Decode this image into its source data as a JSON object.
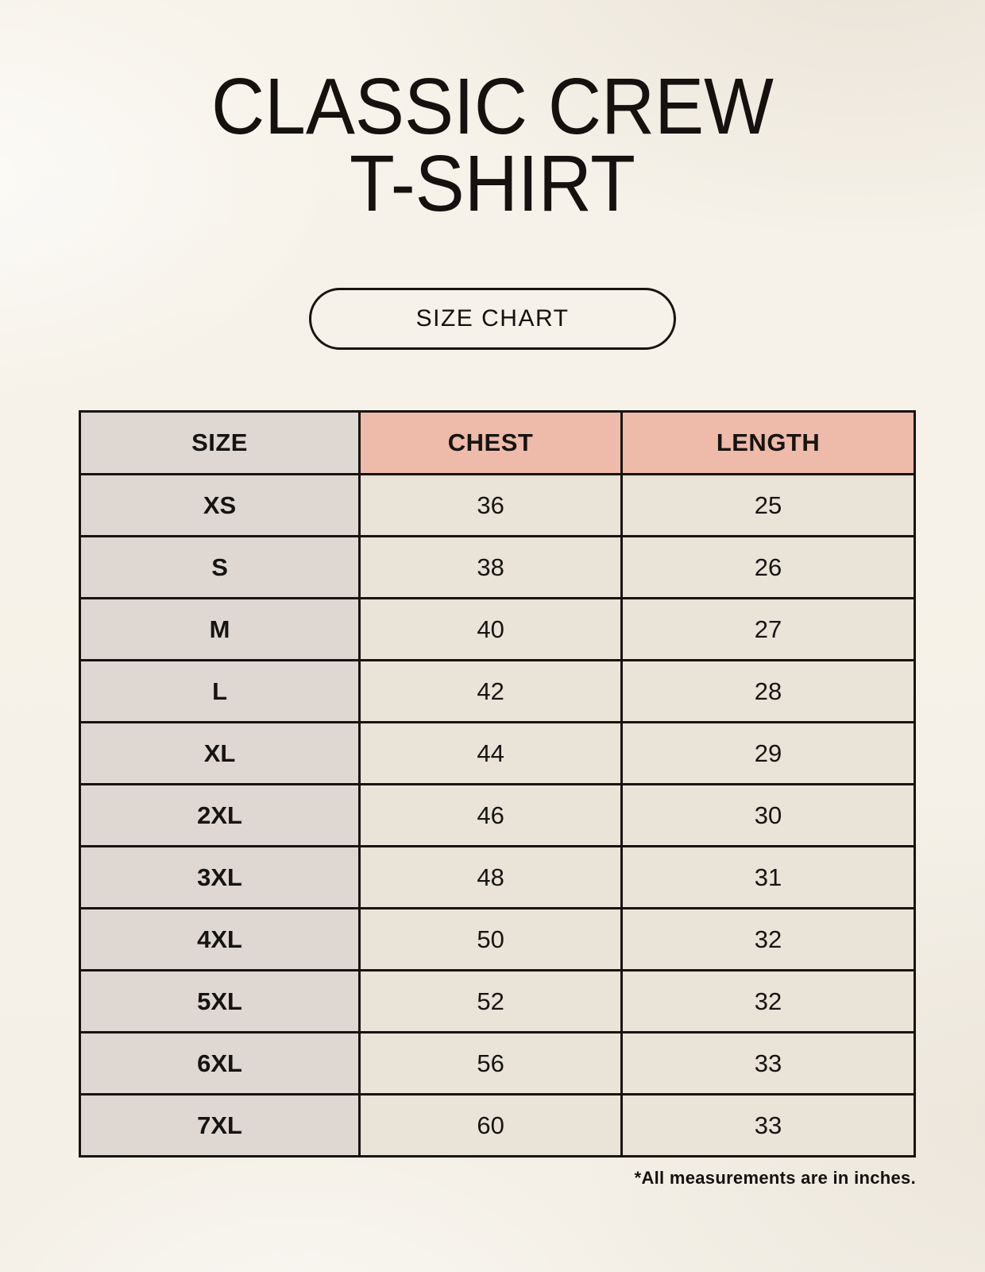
{
  "page": {
    "title_line1": "CLASSIC CREW",
    "title_line2": "T-SHIRT",
    "button_label": "SIZE CHART",
    "footnote": "*All measurements are in inches."
  },
  "chart_data": {
    "type": "table",
    "title": "CLASSIC CREW T-SHIRT SIZE CHART",
    "columns": [
      "SIZE",
      "CHEST",
      "LENGTH"
    ],
    "units": "inches",
    "rows": [
      [
        "XS",
        "36",
        "25"
      ],
      [
        "S",
        "38",
        "26"
      ],
      [
        "M",
        "40",
        "27"
      ],
      [
        "L",
        "42",
        "28"
      ],
      [
        "XL",
        "44",
        "29"
      ],
      [
        "2XL",
        "46",
        "30"
      ],
      [
        "3XL",
        "48",
        "31"
      ],
      [
        "4XL",
        "50",
        "32"
      ],
      [
        "5XL",
        "52",
        "32"
      ],
      [
        "6XL",
        "56",
        "33"
      ],
      [
        "7XL",
        "60",
        "33"
      ]
    ]
  },
  "colors": {
    "background": "#f6f2e9",
    "header_accent": "#eebaa9",
    "size_column_bg": "#ded7d2",
    "data_cell_bg": "#e9e3d8",
    "border": "#17130f",
    "text": "#14110e"
  }
}
